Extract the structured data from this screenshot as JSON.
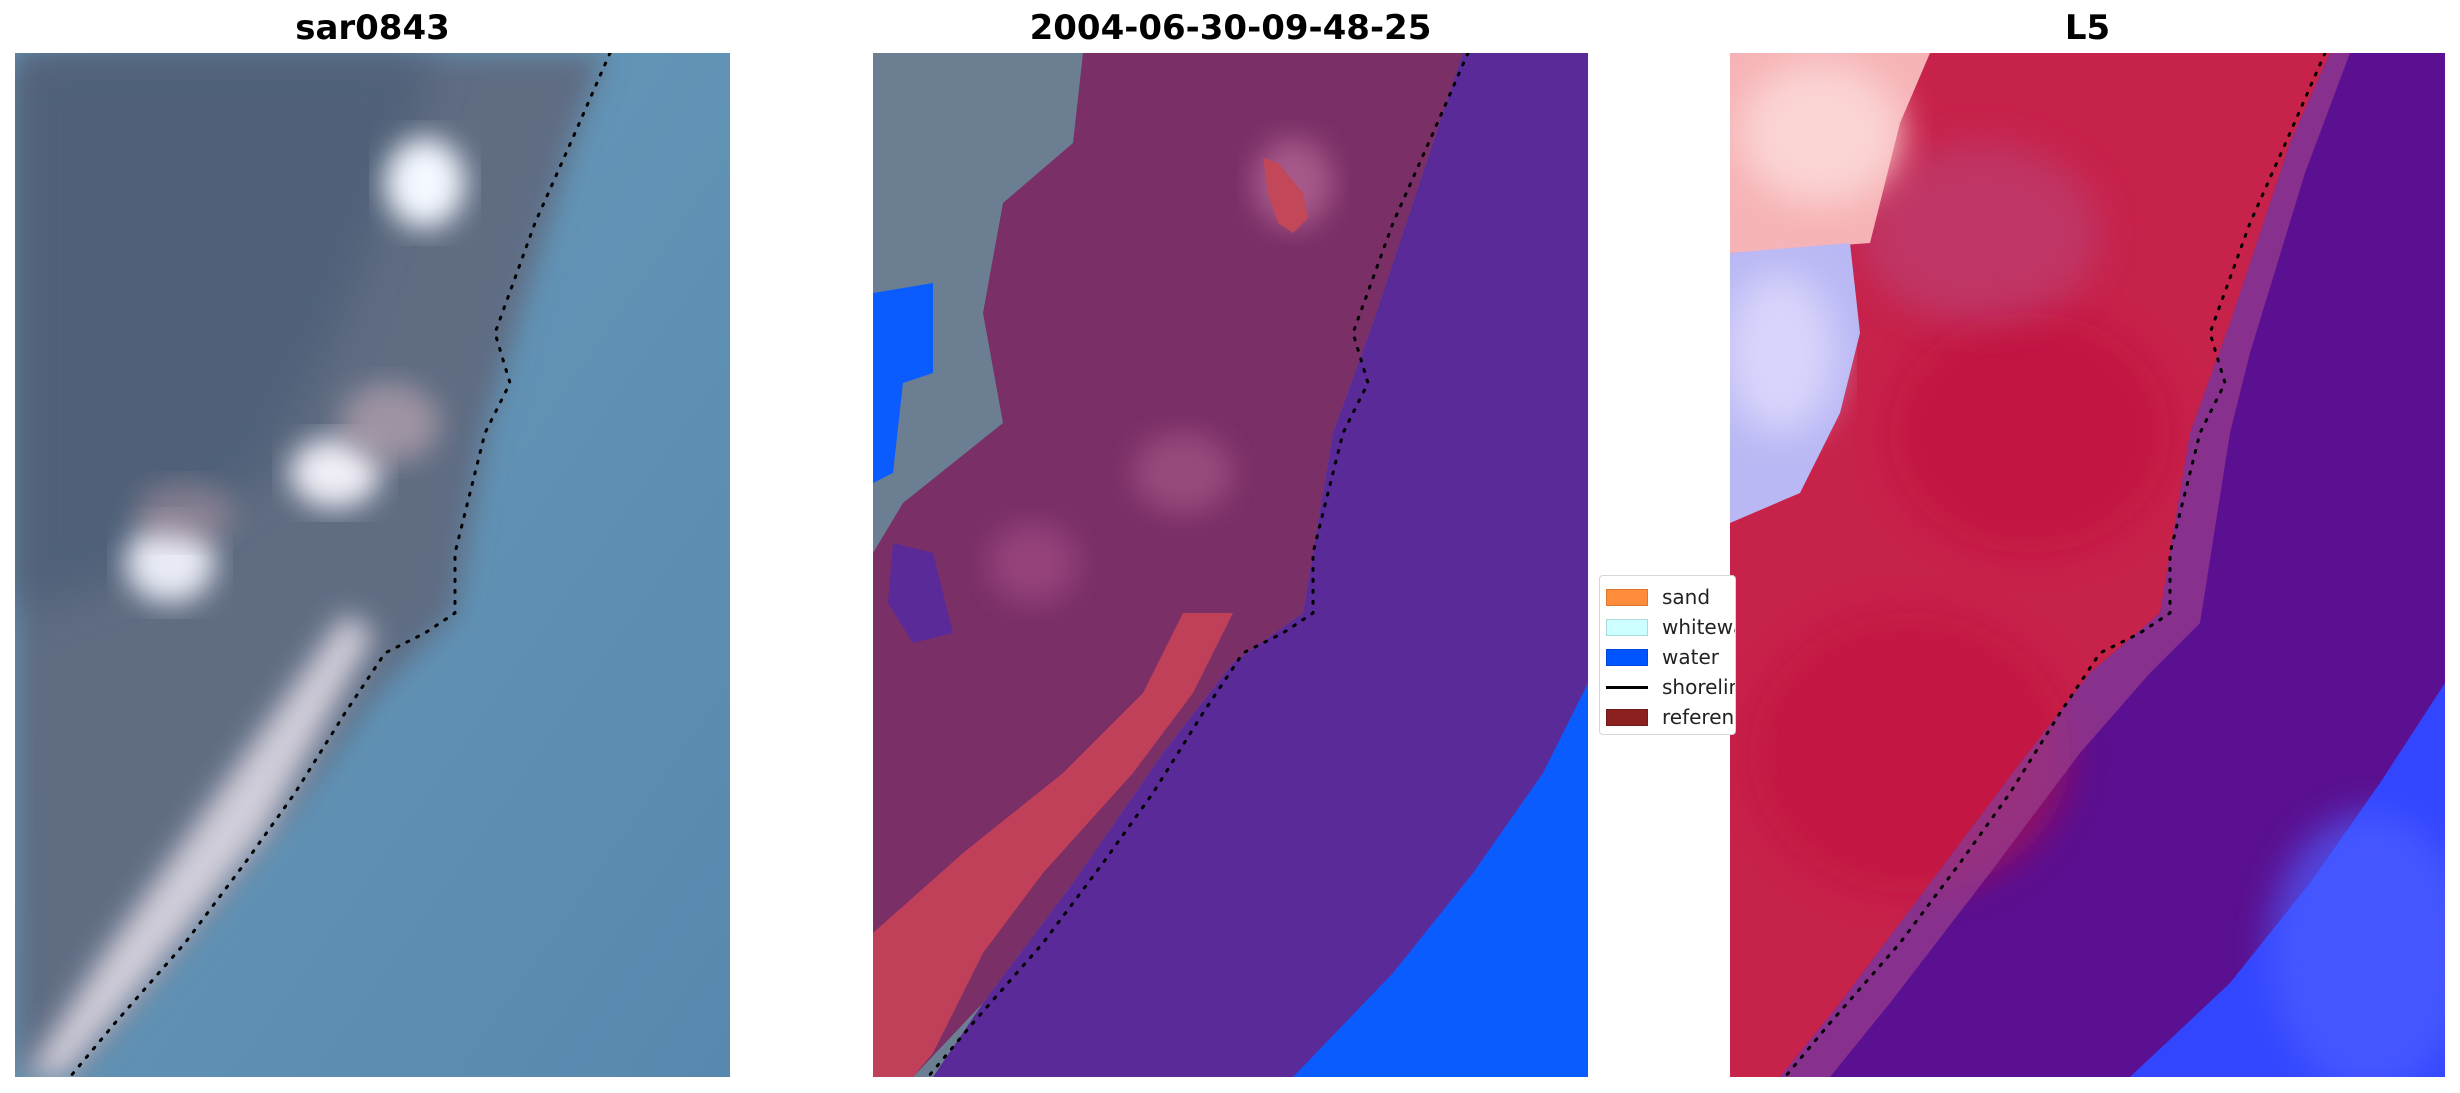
{
  "panels": [
    {
      "title": "sar0843"
    },
    {
      "title": "2004-06-30-09-48-25"
    },
    {
      "title": "L5"
    }
  ],
  "legend": {
    "items": [
      {
        "label": "sand",
        "color": "#ff8c3a",
        "kind": "patch"
      },
      {
        "label": "whitewater",
        "color": "#ccffff",
        "kind": "patch"
      },
      {
        "label": "water",
        "color": "#0055ff",
        "kind": "patch"
      },
      {
        "label": "shoreline",
        "color": "#000000",
        "kind": "line"
      },
      {
        "label": "reference",
        "color": "#8b2020",
        "kind": "patch"
      }
    ]
  },
  "colors": {
    "water_rgb": "#5b8fb3",
    "land_rgb": "#5d6e86",
    "sand_overlay": "#c2455c",
    "water_class": "#5a2a98",
    "water_class_bright": "#0a5cff",
    "index_red": "#c2123a",
    "index_purple": "#5a1090",
    "index_blue": "#3346ff"
  }
}
